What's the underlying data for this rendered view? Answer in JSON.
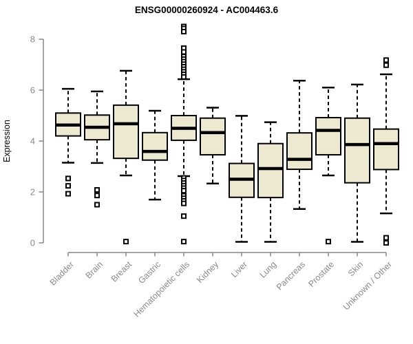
{
  "page": {
    "background": "#ffffff"
  },
  "chart_data": {
    "type": "boxplot",
    "title": "ENSG00000260924 - AC004463.6",
    "ylabel": "Expression",
    "xlabel": "",
    "ylim": [
      0,
      8.6
    ],
    "yticks": [
      0,
      2,
      4,
      6,
      8
    ],
    "grid": false,
    "legend": "none",
    "style": {
      "box_fill": "#EDE9D0",
      "box_stroke": "#000000",
      "median_color": "#000000",
      "axis_color": "#878787",
      "label_color": "#8a8a8a",
      "whisker_line": "dashed",
      "outlier_marker": "open-square"
    },
    "categories": [
      "Bladder",
      "Brain",
      "Breast",
      "Gastric",
      "Hematopoietic cells",
      "Kidney",
      "Liver",
      "Lung",
      "Pancreas",
      "Prostate",
      "Skin",
      "Unknown / Other"
    ],
    "boxes": [
      {
        "label": "Bladder",
        "whisker_low": 3.15,
        "q1": 4.2,
        "median": 4.63,
        "q3": 5.1,
        "whisker_high": 6.05,
        "outliers": [
          2.53,
          2.24,
          1.93
        ]
      },
      {
        "label": "Brain",
        "whisker_low": 3.14,
        "q1": 4.05,
        "median": 4.54,
        "q3": 5.02,
        "whisker_high": 5.95,
        "outliers": [
          2.08,
          1.86,
          1.5
        ]
      },
      {
        "label": "Breast",
        "whisker_low": 2.65,
        "q1": 3.32,
        "median": 4.68,
        "q3": 5.41,
        "whisker_high": 6.76,
        "outliers": [
          0.05
        ]
      },
      {
        "label": "Gastric",
        "whisker_low": 1.7,
        "q1": 3.25,
        "median": 3.59,
        "q3": 4.33,
        "whisker_high": 5.19,
        "outliers": []
      },
      {
        "label": "Hematopoietic cells",
        "whisker_low": 2.62,
        "q1": 4.03,
        "median": 4.5,
        "q3": 5.0,
        "whisker_high": 6.43,
        "outliers": [
          8.5,
          8.42,
          8.3,
          7.65,
          7.5,
          7.32,
          7.22,
          7.12,
          7.02,
          6.92,
          6.82,
          6.72,
          6.62,
          6.52,
          2.55,
          2.45,
          2.35,
          2.25,
          2.15,
          2.05,
          1.85,
          1.75,
          1.65,
          1.55,
          1.05,
          0.05
        ]
      },
      {
        "label": "Kidney",
        "whisker_low": 2.33,
        "q1": 3.46,
        "median": 4.33,
        "q3": 4.9,
        "whisker_high": 5.31,
        "outliers": []
      },
      {
        "label": "Liver",
        "whisker_low": 0.04,
        "q1": 1.79,
        "median": 2.5,
        "q3": 3.12,
        "whisker_high": 4.99,
        "outliers": []
      },
      {
        "label": "Lung",
        "whisker_low": 0.04,
        "q1": 1.78,
        "median": 2.92,
        "q3": 3.9,
        "whisker_high": 4.74,
        "outliers": []
      },
      {
        "label": "Pancreas",
        "whisker_low": 1.33,
        "q1": 2.89,
        "median": 3.28,
        "q3": 4.32,
        "whisker_high": 6.37,
        "outliers": []
      },
      {
        "label": "Prostate",
        "whisker_low": 2.65,
        "q1": 3.46,
        "median": 4.42,
        "q3": 4.92,
        "whisker_high": 6.1,
        "outliers": [
          0.05
        ]
      },
      {
        "label": "Skin",
        "whisker_low": 0.04,
        "q1": 2.36,
        "median": 3.86,
        "q3": 4.9,
        "whisker_high": 6.22,
        "outliers": []
      },
      {
        "label": "Unknown / Other",
        "whisker_low": 1.16,
        "q1": 2.88,
        "median": 3.9,
        "q3": 4.47,
        "whisker_high": 6.62,
        "outliers": [
          7.18,
          6.98,
          0.2,
          0.0
        ]
      }
    ]
  }
}
